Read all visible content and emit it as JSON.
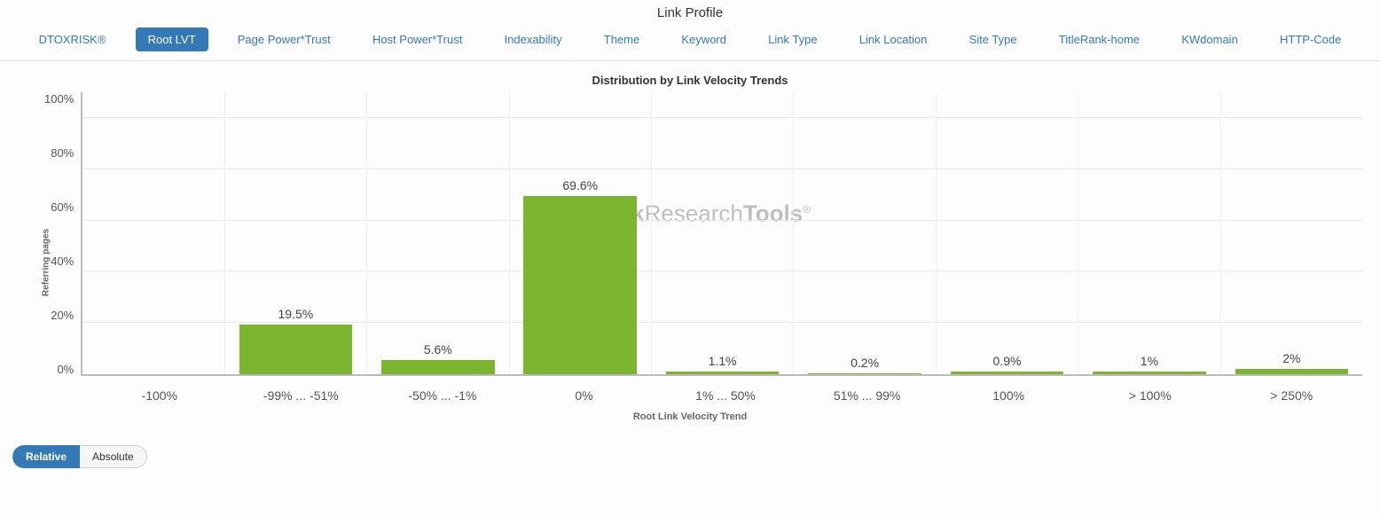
{
  "header": {
    "section_title": "Link Profile"
  },
  "tabs": {
    "items": [
      {
        "label": "DTOXRISK®",
        "active": false
      },
      {
        "label": "Root LVT",
        "active": true
      },
      {
        "label": "Page Power*Trust",
        "active": false
      },
      {
        "label": "Host Power*Trust",
        "active": false
      },
      {
        "label": "Indexability",
        "active": false
      },
      {
        "label": "Theme",
        "active": false
      },
      {
        "label": "Keyword",
        "active": false
      },
      {
        "label": "Link Type",
        "active": false
      },
      {
        "label": "Link Location",
        "active": false
      },
      {
        "label": "Site Type",
        "active": false
      },
      {
        "label": "TitleRank-home",
        "active": false
      },
      {
        "label": "KWdomain",
        "active": false
      },
      {
        "label": "HTTP-Code",
        "active": false
      }
    ]
  },
  "chart": {
    "title": "Distribution by Link Velocity Trends",
    "type": "bar",
    "ylabel": "Referring pages",
    "xlabel": "Root Link Velocity Trend",
    "ymax": 110,
    "yticks": [
      "100%",
      "80%",
      "60%",
      "40%",
      "20%",
      "0%"
    ],
    "ytick_values": [
      100,
      80,
      60,
      40,
      20,
      0
    ],
    "bar_color": "#7cb630",
    "grid_color": "#e8e8e8",
    "axis_color": "#bbbbbb",
    "background_color": "#ffffff",
    "label_fontsize": 14,
    "title_fontsize": 13,
    "categories": [
      "-100%",
      "-99% ... -51%",
      "-50% ... -1%",
      "0%",
      "1% ... 50%",
      "51% ... 99%",
      "100%",
      "> 100%",
      "> 250%"
    ],
    "values": [
      0,
      19.5,
      5.6,
      69.6,
      1.1,
      0.2,
      0.9,
      1,
      2
    ],
    "value_labels": [
      "",
      "19.5%",
      "5.6%",
      "69.6%",
      "1.1%",
      "0.2%",
      "0.9%",
      "1%",
      "2%"
    ]
  },
  "watermark": {
    "text_prefix": "Link",
    "text_mid": "Research",
    "text_suffix": "Tools",
    "color": "#bfbfbf"
  },
  "toggle": {
    "options": [
      {
        "label": "Relative",
        "active": true
      },
      {
        "label": "Absolute",
        "active": false
      }
    ]
  }
}
